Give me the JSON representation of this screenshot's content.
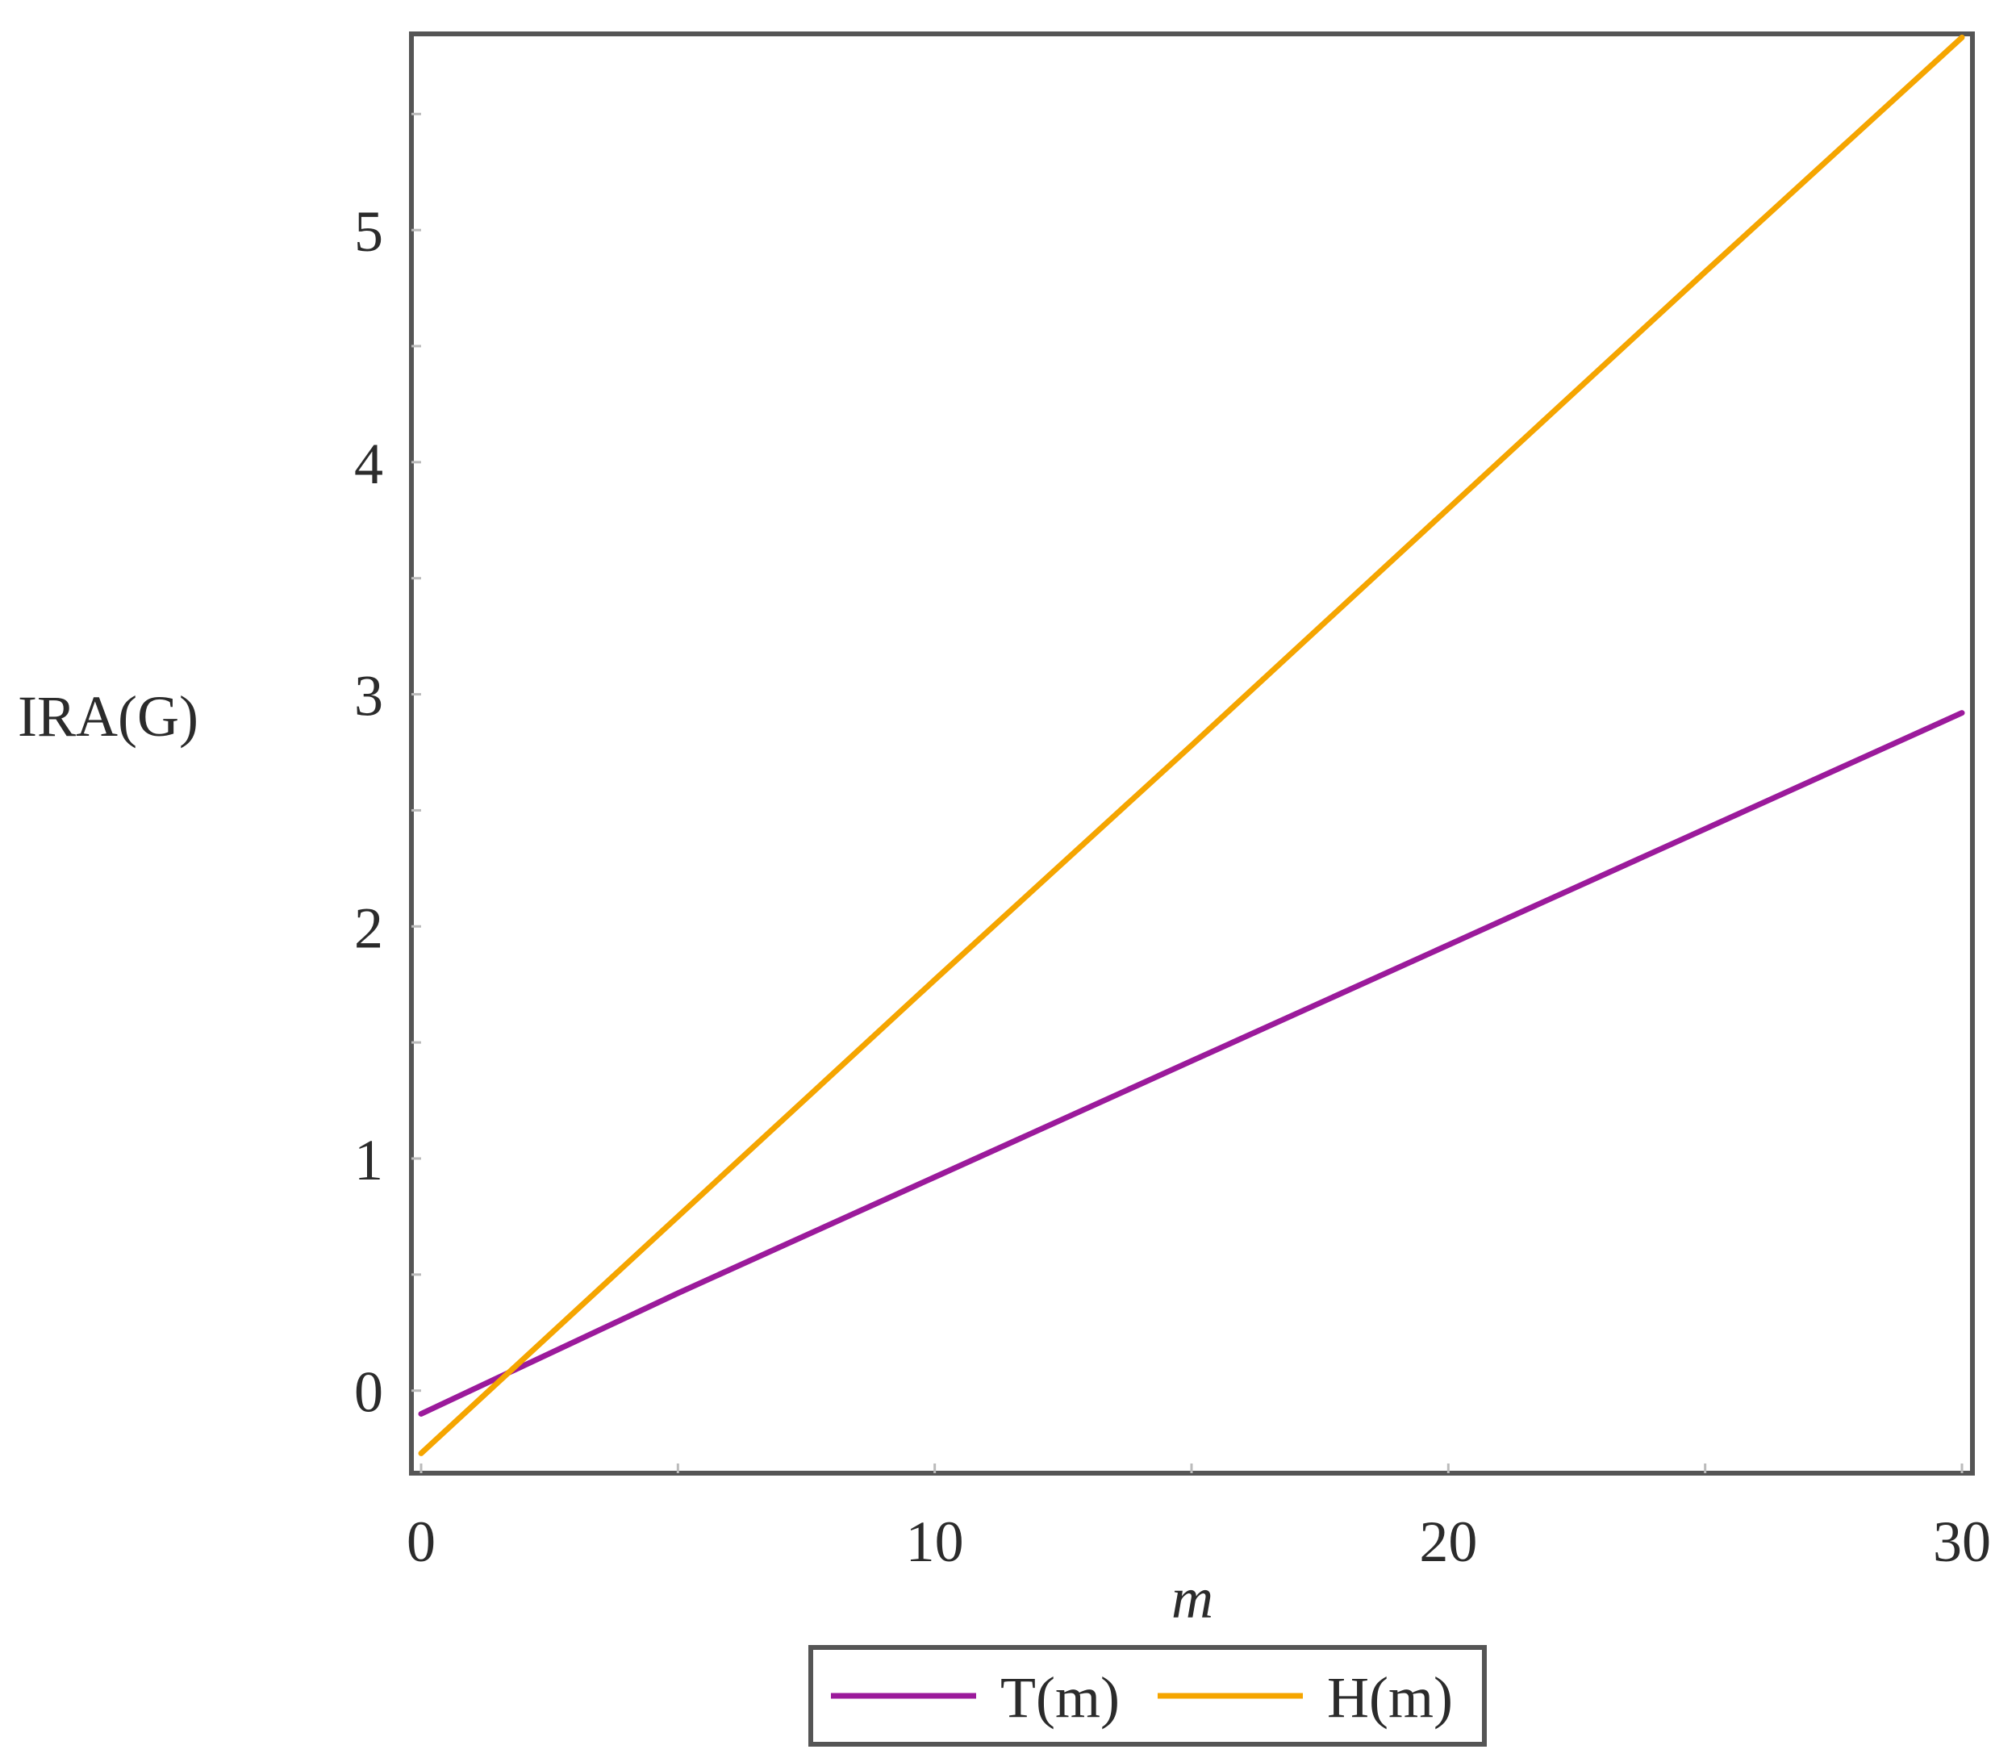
{
  "chart_data": {
    "type": "line",
    "title": "",
    "xlabel": "m",
    "ylabel": "IRA(G)",
    "xlim": [
      0,
      30
    ],
    "ylim": [
      -0.3,
      5.8
    ],
    "xticks": [
      0,
      10,
      20,
      30
    ],
    "yticks": [
      0,
      1,
      2,
      3,
      4,
      5
    ],
    "grid": false,
    "legend_position": "bottom",
    "x": [
      0,
      5,
      10,
      15,
      20,
      25,
      30
    ],
    "series": [
      {
        "name": "T(m)",
        "color": "#9b1a9b",
        "values": [
          -0.1,
          0.42,
          0.92,
          1.42,
          1.92,
          2.42,
          2.92
        ]
      },
      {
        "name": "H(m)",
        "color": "#f5a500",
        "values": [
          -0.27,
          0.75,
          1.77,
          2.78,
          3.8,
          4.82,
          5.83
        ]
      }
    ]
  }
}
